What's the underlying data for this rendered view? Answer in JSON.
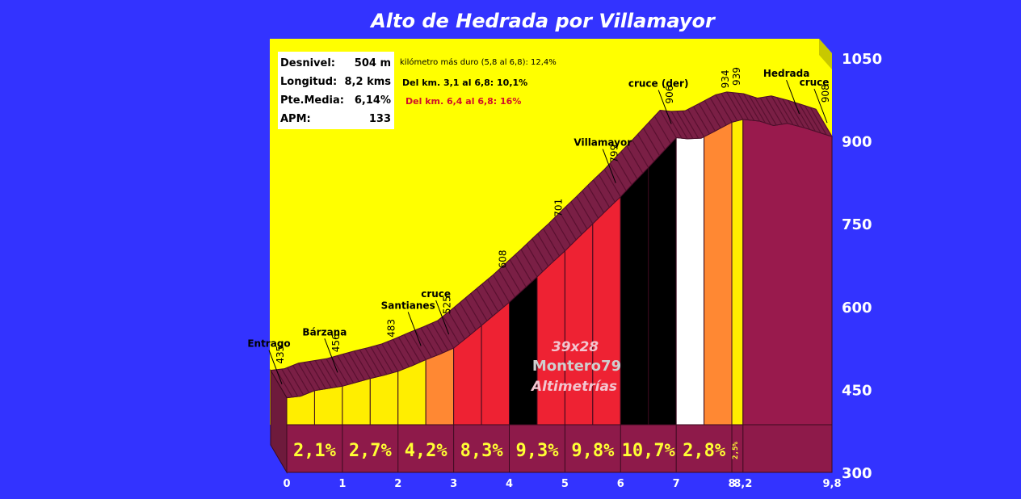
{
  "chart_data": {
    "type": "area",
    "title": "Alto de Hedrada por Villamayor",
    "y_ticks": [
      "1050",
      "900",
      "750",
      "600",
      "450",
      "300"
    ],
    "y_tick_values": [
      1050,
      900,
      750,
      600,
      450,
      300
    ],
    "ylim": [
      300,
      1080
    ],
    "x_ticks": [
      "0",
      "1",
      "2",
      "3",
      "4",
      "5",
      "6",
      "7",
      "8",
      "8,2",
      "9,8"
    ],
    "x_tick_values": [
      0,
      1,
      2,
      3,
      4,
      5,
      6,
      7,
      8,
      8.2,
      9.8
    ],
    "xlim": [
      0,
      9.8
    ],
    "profile": [
      {
        "x": 0,
        "y": 435
      },
      {
        "x": 0.25,
        "y": 438
      },
      {
        "x": 0.5,
        "y": 448
      },
      {
        "x": 0.75,
        "y": 452
      },
      {
        "x": 1,
        "y": 456
      },
      {
        "x": 1.25,
        "y": 463
      },
      {
        "x": 1.5,
        "y": 470
      },
      {
        "x": 1.75,
        "y": 476
      },
      {
        "x": 2,
        "y": 483
      },
      {
        "x": 2.25,
        "y": 493
      },
      {
        "x": 2.5,
        "y": 504
      },
      {
        "x": 2.75,
        "y": 514
      },
      {
        "x": 3,
        "y": 525
      },
      {
        "x": 3.25,
        "y": 545
      },
      {
        "x": 3.5,
        "y": 566
      },
      {
        "x": 3.75,
        "y": 587
      },
      {
        "x": 4,
        "y": 608
      },
      {
        "x": 4.25,
        "y": 631
      },
      {
        "x": 4.5,
        "y": 654
      },
      {
        "x": 4.75,
        "y": 678
      },
      {
        "x": 5,
        "y": 701
      },
      {
        "x": 5.25,
        "y": 726
      },
      {
        "x": 5.5,
        "y": 750
      },
      {
        "x": 5.75,
        "y": 775
      },
      {
        "x": 6,
        "y": 799
      },
      {
        "x": 6.25,
        "y": 826
      },
      {
        "x": 6.5,
        "y": 852
      },
      {
        "x": 6.75,
        "y": 879
      },
      {
        "x": 7,
        "y": 906
      },
      {
        "x": 7.2,
        "y": 904
      },
      {
        "x": 7.45,
        "y": 905
      },
      {
        "x": 7.7,
        "y": 918
      },
      {
        "x": 8,
        "y": 934
      },
      {
        "x": 8.2,
        "y": 939
      },
      {
        "x": 8.5,
        "y": 936
      },
      {
        "x": 8.75,
        "y": 928
      },
      {
        "x": 9,
        "y": 932
      },
      {
        "x": 9.3,
        "y": 924
      },
      {
        "x": 9.55,
        "y": 916
      },
      {
        "x": 9.8,
        "y": 908
      }
    ],
    "segments": [
      {
        "from": 0,
        "to": 0.5,
        "color": "#ffee00"
      },
      {
        "from": 0.5,
        "to": 1,
        "color": "#ffee00"
      },
      {
        "from": 1,
        "to": 1.5,
        "color": "#ffee00"
      },
      {
        "from": 1.5,
        "to": 2,
        "color": "#ffee00"
      },
      {
        "from": 2,
        "to": 2.5,
        "color": "#ffee00"
      },
      {
        "from": 2.5,
        "to": 3,
        "color": "#ff8833"
      },
      {
        "from": 3,
        "to": 3.5,
        "color": "#ee2233"
      },
      {
        "from": 3.5,
        "to": 4,
        "color": "#ee2233"
      },
      {
        "from": 4,
        "to": 4.5,
        "color": "#000000"
      },
      {
        "from": 4.5,
        "to": 5,
        "color": "#ee2233"
      },
      {
        "from": 5,
        "to": 5.5,
        "color": "#ee2233"
      },
      {
        "from": 5.5,
        "to": 6,
        "color": "#ee2233"
      },
      {
        "from": 6,
        "to": 6.5,
        "color": "#000000"
      },
      {
        "from": 6.5,
        "to": 7,
        "color": "#000000"
      },
      {
        "from": 7,
        "to": 7.5,
        "color": "#ffffff"
      },
      {
        "from": 7.5,
        "to": 8,
        "color": "#ff8833"
      },
      {
        "from": 8,
        "to": 8.2,
        "color": "#ffee00"
      },
      {
        "from": 8.2,
        "to": 9.8,
        "color": "#991a4d"
      }
    ],
    "km_slopes": [
      {
        "x": 0.5,
        "label": "2,1%"
      },
      {
        "x": 1.5,
        "label": "2,7%"
      },
      {
        "x": 2.5,
        "label": "4,2%"
      },
      {
        "x": 3.5,
        "label": "8,3%"
      },
      {
        "x": 4.5,
        "label": "9,3%"
      },
      {
        "x": 5.5,
        "label": "9,8%"
      },
      {
        "x": 6.5,
        "label": "10,7%"
      },
      {
        "x": 7.5,
        "label": "2,8%"
      },
      {
        "x": 8.1,
        "label": "2,5%",
        "small": true
      }
    ],
    "elevation_labels": [
      {
        "x": 0,
        "label": "435"
      },
      {
        "x": 1,
        "label": "456"
      },
      {
        "x": 2,
        "label": "483"
      },
      {
        "x": 3,
        "label": "525"
      },
      {
        "x": 4,
        "label": "608"
      },
      {
        "x": 5,
        "label": "701"
      },
      {
        "x": 6,
        "label": "799"
      },
      {
        "x": 7,
        "label": "906"
      },
      {
        "x": 8,
        "label": "934"
      },
      {
        "x": 8.2,
        "label": "939"
      },
      {
        "x": 9.8,
        "label": "908"
      }
    ],
    "place_labels": [
      {
        "x": 0,
        "label": "Entrago"
      },
      {
        "x": 1,
        "label": "Bárzana"
      },
      {
        "x": 2.5,
        "label": "Santianes"
      },
      {
        "x": 3,
        "label": "cruce"
      },
      {
        "x": 6,
        "label": "Villamayor"
      },
      {
        "x": 7,
        "label": "cruce (der)"
      },
      {
        "x": 9.3,
        "label": "Hedrada"
      },
      {
        "x": 9.8,
        "label": "cruce"
      }
    ]
  },
  "info_box": {
    "rows": [
      {
        "label": "Desnivel:",
        "value": "504 m"
      },
      {
        "label": "Longitud:",
        "value": "8,2 kms"
      },
      {
        "label": "Pte.Media:",
        "value": "6,14%"
      },
      {
        "label": "APM:",
        "value": "133"
      }
    ]
  },
  "notes": {
    "hardest_km": "kilómetro más duro (5,8 al 6,8):  12,4%",
    "segment_a": "Del km. 3,1 al 6,8:   10,1%",
    "segment_b": "Del km. 6,4 al 6,8:   16%"
  },
  "watermark": {
    "gear": "39x28",
    "author": "Montero79",
    "site": "Altimetrías"
  },
  "colors": {
    "background": "#3333ff",
    "sky": "#ffff00",
    "ribbon": "#7a1f45",
    "base": "#8e1a4a",
    "pct_text": "#ffff33"
  }
}
